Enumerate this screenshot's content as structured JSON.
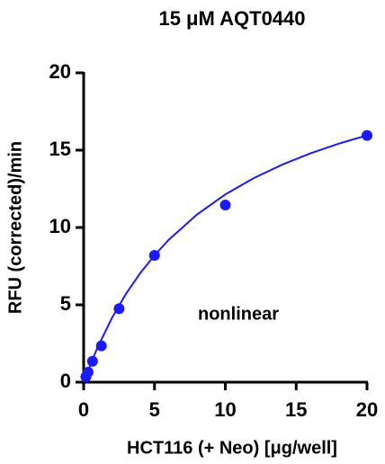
{
  "chart_data": {
    "type": "scatter",
    "title": "15 μM AQT0440",
    "xlabel": "HCT116 (+ Neo)  [μg/well]",
    "ylabel": "RFU (corrected)/min",
    "annotation": "nonlinear",
    "color": "#1a1aff",
    "x": [
      0.156,
      0.3125,
      0.625,
      1.25,
      2.5,
      5,
      10,
      20
    ],
    "values": [
      0.35,
      0.65,
      1.35,
      2.35,
      4.75,
      8.2,
      11.45,
      15.95
    ],
    "curve": {
      "x": [
        0,
        0.5,
        1,
        2,
        3,
        4,
        5,
        6,
        8,
        10,
        12,
        14,
        16,
        18,
        20
      ],
      "values": [
        0,
        1.2,
        2.28,
        4.16,
        5.73,
        7.06,
        8.2,
        9.2,
        10.84,
        12.14,
        13.19,
        14.06,
        14.79,
        15.42,
        15.96
      ]
    },
    "xlim": [
      0,
      20
    ],
    "ylim": [
      0,
      20
    ],
    "xticks": [
      0,
      5,
      10,
      15,
      20
    ],
    "yticks": [
      0,
      5,
      10,
      15,
      20
    ]
  }
}
